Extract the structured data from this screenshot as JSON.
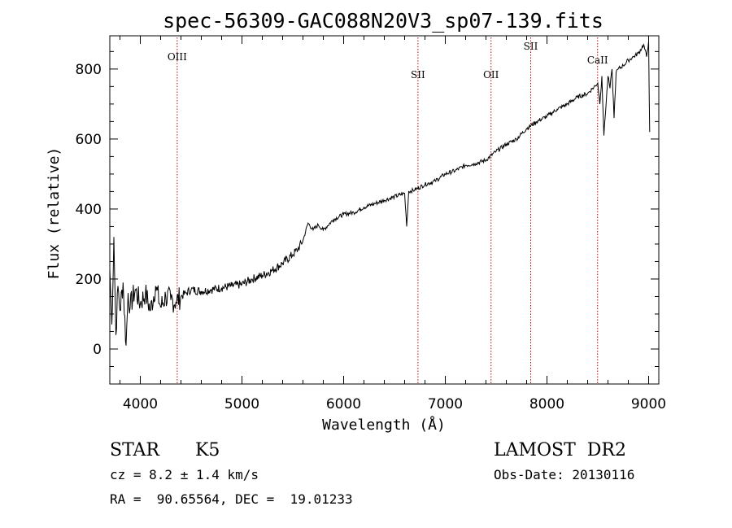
{
  "chart_data": {
    "type": "line",
    "title": "spec-56309-GAC088N20V3_sp07-139.fits",
    "xlabel": "Wavelength (Å)",
    "ylabel": "Flux (relative)",
    "xlim": [
      3700,
      9100
    ],
    "ylim": [
      -100,
      895
    ],
    "x_ticks": [
      4000,
      5000,
      6000,
      7000,
      8000,
      9000
    ],
    "y_ticks": [
      0,
      200,
      400,
      600,
      800
    ],
    "grid": false,
    "series": [
      {
        "color": "#000000",
        "x": [
          3700,
          3720,
          3740,
          3760,
          3780,
          3800,
          3830,
          3860,
          3880,
          3900,
          3950,
          4000,
          4050,
          4100,
          4150,
          4200,
          4250,
          4300,
          4350,
          4400,
          4450,
          4500,
          4600,
          4700,
          4800,
          4900,
          5000,
          5100,
          5200,
          5300,
          5400,
          5500,
          5550,
          5600,
          5650,
          5700,
          5750,
          5800,
          5900,
          6000,
          6100,
          6200,
          6300,
          6400,
          6500,
          6600,
          6620,
          6640,
          6700,
          6800,
          6900,
          7000,
          7100,
          7200,
          7300,
          7400,
          7500,
          7600,
          7700,
          7800,
          7900,
          8000,
          8100,
          8200,
          8300,
          8400,
          8450,
          8500,
          8520,
          8540,
          8560,
          8600,
          8620,
          8640,
          8660,
          8680,
          8700,
          8750,
          8800,
          8850,
          8900,
          8950,
          8980,
          9000,
          9010
        ],
        "y": [
          230,
          70,
          320,
          40,
          180,
          110,
          190,
          10,
          160,
          120,
          170,
          130,
          160,
          110,
          180,
          120,
          150,
          140,
          135,
          150,
          160,
          170,
          165,
          170,
          175,
          180,
          185,
          200,
          210,
          225,
          245,
          270,
          285,
          310,
          360,
          340,
          355,
          340,
          370,
          385,
          390,
          405,
          415,
          425,
          435,
          445,
          350,
          450,
          455,
          470,
          480,
          500,
          510,
          525,
          530,
          540,
          565,
          585,
          600,
          630,
          650,
          665,
          685,
          700,
          720,
          730,
          745,
          760,
          700,
          780,
          610,
          780,
          745,
          800,
          660,
          790,
          800,
          810,
          825,
          835,
          845,
          870,
          835,
          880,
          620
        ]
      }
    ],
    "lines": [
      {
        "label": "OIII",
        "wavelength": 4363
      },
      {
        "label": "SII",
        "wavelength": 6731
      },
      {
        "label": "OII",
        "wavelength": 7450
      },
      {
        "label": "SII",
        "wavelength": 7840
      },
      {
        "label": "CaII",
        "wavelength": 8498
      }
    ],
    "line_color": "#c00000"
  },
  "info": {
    "object_class": "STAR",
    "subclass": "K5",
    "survey": "LAMOST  DR2",
    "cz": "cz = 8.2 ± 1.4 km/s",
    "obs_date": "Obs-Date: 20130116",
    "coords": "RA =  90.65564, DEC =  19.01233"
  }
}
